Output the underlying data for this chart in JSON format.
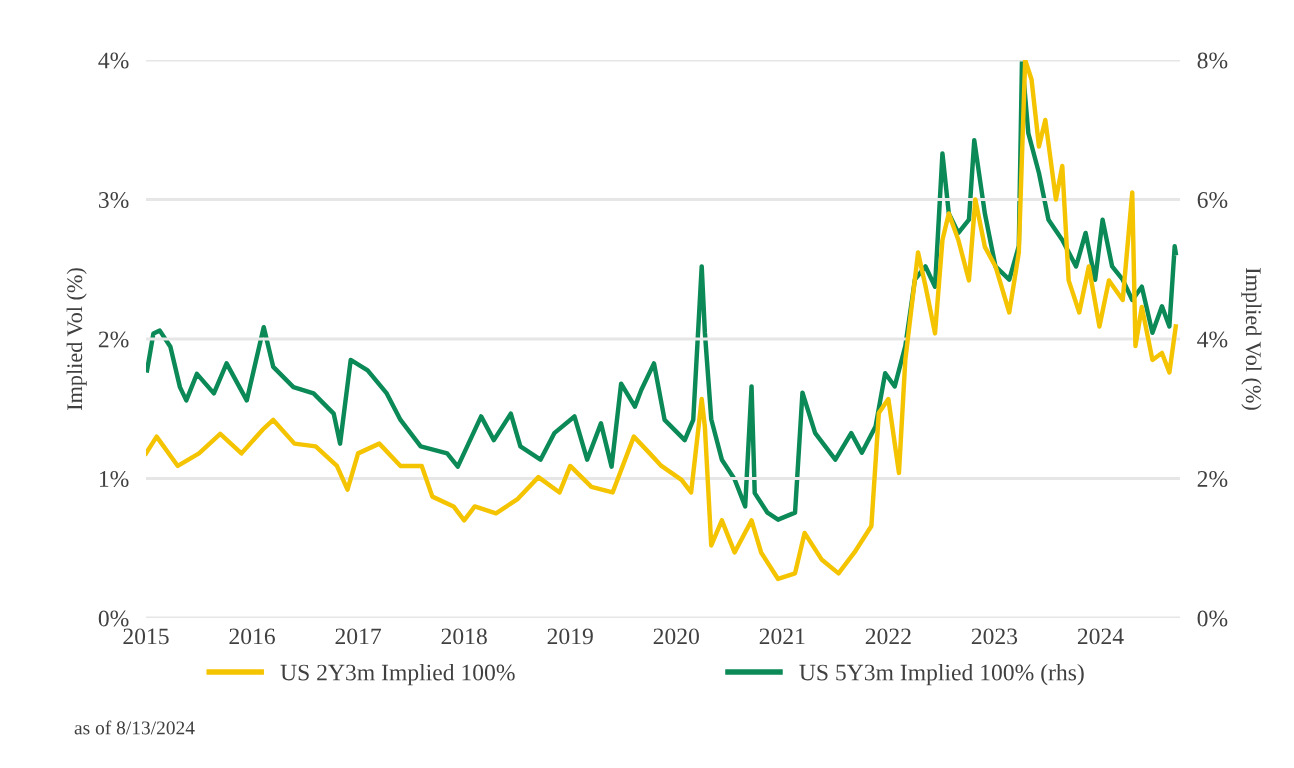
{
  "chart_data": {
    "type": "line",
    "ylabel": "Implied Vol (%)",
    "y2label": "Implied Vol (%)",
    "xlim": [
      2015,
      2024.75
    ],
    "xticks": [
      2015,
      2016,
      2017,
      2018,
      2019,
      2020,
      2021,
      2022,
      2023,
      2024
    ],
    "ylim": [
      0,
      4
    ],
    "yticks": [
      {
        "value": 0,
        "label": "0%"
      },
      {
        "value": 1,
        "label": "1%"
      },
      {
        "value": 2,
        "label": "2%"
      },
      {
        "value": 3,
        "label": "3%"
      },
      {
        "value": 4,
        "label": "4%"
      }
    ],
    "y2lim": [
      0,
      8
    ],
    "y2ticks": [
      {
        "value": 0,
        "label": "0%"
      },
      {
        "value": 2,
        "label": "2%"
      },
      {
        "value": 4,
        "label": "4%"
      },
      {
        "value": 6,
        "label": "6%"
      },
      {
        "value": 8,
        "label": "8%"
      }
    ],
    "grid": "y",
    "legend": "bottom",
    "annotations": [
      "as of 8/13/2024"
    ],
    "series": [
      {
        "name": "US 2Y3m Implied 100%",
        "color": "#f5c400",
        "x": [
          2015.0,
          2015.1,
          2015.3,
          2015.5,
          2015.7,
          2015.9,
          2016.1,
          2016.2,
          2016.4,
          2016.6,
          2016.8,
          2016.9,
          2017.0,
          2017.2,
          2017.4,
          2017.6,
          2017.7,
          2017.9,
          2018.0,
          2018.1,
          2018.3,
          2018.5,
          2018.7,
          2018.9,
          2019.0,
          2019.2,
          2019.4,
          2019.6,
          2019.75,
          2019.86,
          2020.05,
          2020.14,
          2020.24,
          2020.27,
          2020.33,
          2020.43,
          2020.55,
          2020.71,
          2020.8,
          2020.96,
          2021.12,
          2021.21,
          2021.37,
          2021.53,
          2021.68,
          2021.84,
          2021.91,
          2022.0,
          2022.1,
          2022.16,
          2022.28,
          2022.35,
          2022.44,
          2022.51,
          2022.57,
          2022.66,
          2022.76,
          2022.82,
          2022.91,
          2023.01,
          2023.14,
          2023.23,
          2023.29,
          2023.35,
          2023.42,
          2023.48,
          2023.58,
          2023.64,
          2023.7,
          2023.8,
          2023.89,
          2023.99,
          2024.08,
          2024.21,
          2024.3,
          2024.33,
          2024.39,
          2024.49,
          2024.58,
          2024.65,
          2024.71
        ],
        "values": [
          1.18,
          1.3,
          1.09,
          1.18,
          1.32,
          1.18,
          1.35,
          1.42,
          1.25,
          1.23,
          1.09,
          0.92,
          1.18,
          1.25,
          1.09,
          1.09,
          0.87,
          0.8,
          0.7,
          0.8,
          0.75,
          0.85,
          1.01,
          0.9,
          1.09,
          0.94,
          0.9,
          1.3,
          1.18,
          1.09,
          0.99,
          0.9,
          1.57,
          1.37,
          0.52,
          0.7,
          0.47,
          0.7,
          0.47,
          0.28,
          0.32,
          0.61,
          0.42,
          0.32,
          0.47,
          0.66,
          1.47,
          1.57,
          1.04,
          1.85,
          2.62,
          2.38,
          2.04,
          2.71,
          2.9,
          2.71,
          2.42,
          3.0,
          2.66,
          2.52,
          2.19,
          2.62,
          4.0,
          3.86,
          3.38,
          3.57,
          3.0,
          3.24,
          2.42,
          2.19,
          2.52,
          2.09,
          2.42,
          2.28,
          3.05,
          1.95,
          2.23,
          1.85,
          1.9,
          1.76,
          2.09
        ]
      },
      {
        "name": "US 5Y3m Implied 100% (rhs)",
        "color": "#0b8a57",
        "axis": "y2",
        "x": [
          2015.01,
          2015.07,
          2015.13,
          2015.23,
          2015.32,
          2015.38,
          2015.48,
          2015.64,
          2015.76,
          2015.95,
          2016.11,
          2016.2,
          2016.39,
          2016.58,
          2016.77,
          2016.83,
          2016.93,
          2017.09,
          2017.27,
          2017.4,
          2017.59,
          2017.84,
          2017.94,
          2018.16,
          2018.28,
          2018.44,
          2018.53,
          2018.72,
          2018.85,
          2019.04,
          2019.16,
          2019.29,
          2019.39,
          2019.48,
          2019.61,
          2019.67,
          2019.79,
          2019.89,
          2020.08,
          2020.16,
          2020.24,
          2020.27,
          2020.33,
          2020.43,
          2020.55,
          2020.65,
          2020.71,
          2020.74,
          2020.86,
          2020.96,
          2021.12,
          2021.19,
          2021.31,
          2021.5,
          2021.65,
          2021.75,
          2021.88,
          2021.97,
          2022.06,
          2022.16,
          2022.25,
          2022.35,
          2022.44,
          2022.51,
          2022.57,
          2022.66,
          2022.76,
          2022.81,
          2022.91,
          2023.01,
          2023.14,
          2023.23,
          2023.26,
          2023.32,
          2023.42,
          2023.51,
          2023.64,
          2023.77,
          2023.86,
          2023.95,
          2024.02,
          2024.11,
          2024.21,
          2024.3,
          2024.39,
          2024.49,
          2024.58,
          2024.65,
          2024.7,
          2024.71
        ],
        "values": [
          3.55,
          4.08,
          4.12,
          3.89,
          3.31,
          3.12,
          3.5,
          3.22,
          3.65,
          3.12,
          4.17,
          3.6,
          3.31,
          3.22,
          2.93,
          2.5,
          3.7,
          3.55,
          3.22,
          2.84,
          2.46,
          2.36,
          2.17,
          2.89,
          2.55,
          2.93,
          2.46,
          2.27,
          2.65,
          2.89,
          2.27,
          2.79,
          2.17,
          3.36,
          3.03,
          3.27,
          3.65,
          2.84,
          2.55,
          2.84,
          5.04,
          4.09,
          2.85,
          2.27,
          1.99,
          1.6,
          3.32,
          1.79,
          1.51,
          1.41,
          1.51,
          3.23,
          2.65,
          2.27,
          2.65,
          2.37,
          2.75,
          3.51,
          3.32,
          3.9,
          4.85,
          5.04,
          4.75,
          6.66,
          5.8,
          5.52,
          5.71,
          6.85,
          5.8,
          5.04,
          4.85,
          5.33,
          8.0,
          6.95,
          6.38,
          5.71,
          5.42,
          5.04,
          5.52,
          4.85,
          5.71,
          5.04,
          4.85,
          4.56,
          4.75,
          4.09,
          4.47,
          4.18,
          5.33,
          5.23
        ]
      }
    ]
  }
}
